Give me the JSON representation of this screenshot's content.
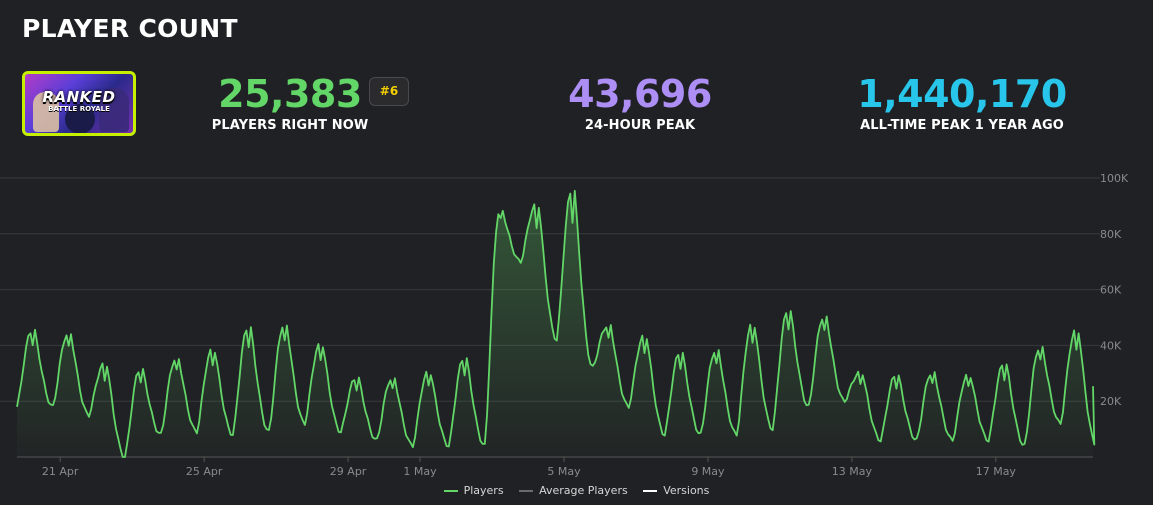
{
  "title": "PLAYER COUNT",
  "thumbnail": {
    "line1": "RANKED",
    "line2": "BATTLE ROYALE",
    "border_color": "#c6f000"
  },
  "stats": {
    "current": {
      "value": "25,383",
      "label": "PLAYERS RIGHT NOW",
      "color": "#63d668",
      "rank": "#6"
    },
    "peak24": {
      "value": "43,696",
      "label": "24-HOUR PEAK",
      "color": "#ad8ef5"
    },
    "alltime": {
      "value": "1,440,170",
      "label": "ALL-TIME PEAK 1 YEAR AGO",
      "color": "#27c6ea"
    }
  },
  "legend": [
    {
      "label": "Players",
      "color": "#63d668"
    },
    {
      "label": "Average Players",
      "color": "#6b6b6b"
    },
    {
      "label": "Versions",
      "color": "#ffffff"
    }
  ],
  "chart_data": {
    "type": "area",
    "y_ticks": [
      "100K",
      "80K",
      "60K",
      "40K",
      "20K"
    ],
    "y_tick_values": [
      100000,
      80000,
      60000,
      40000,
      20000
    ],
    "ylim": [
      0,
      100000
    ],
    "x_ticks": [
      "21 Apr",
      "25 Apr",
      "29 Apr",
      "1 May",
      "5 May",
      "9 May",
      "13 May",
      "17 May"
    ],
    "x_tick_days": [
      1.2,
      5.2,
      9.2,
      11.2,
      15.2,
      19.2,
      23.2,
      27.2
    ],
    "grid": true,
    "legend_position": "bottom",
    "series": [
      {
        "name": "Players",
        "color": "#63d668",
        "daily_peaks": [
          45000,
          44000,
          33000,
          31000,
          35000,
          38000,
          46000,
          47000,
          40000,
          28000,
          28000,
          30000,
          35000,
          88000,
          90000,
          95000,
          47000,
          43000,
          37000,
          38000,
          47000,
          52000,
          50000,
          30000,
          29000,
          30000,
          29000,
          33000,
          39000,
          45000
        ],
        "daily_lows": [
          18000,
          15000,
          0,
          8000,
          9000,
          8000,
          9000,
          12000,
          9000,
          6000,
          4000,
          4000,
          4000,
          70000,
          42000,
          32000,
          18000,
          8000,
          8000,
          8000,
          10000,
          18000,
          20000,
          6000,
          6000,
          6000,
          6000,
          4000,
          12000,
          4000
        ],
        "last_value": 25383
      }
    ]
  }
}
